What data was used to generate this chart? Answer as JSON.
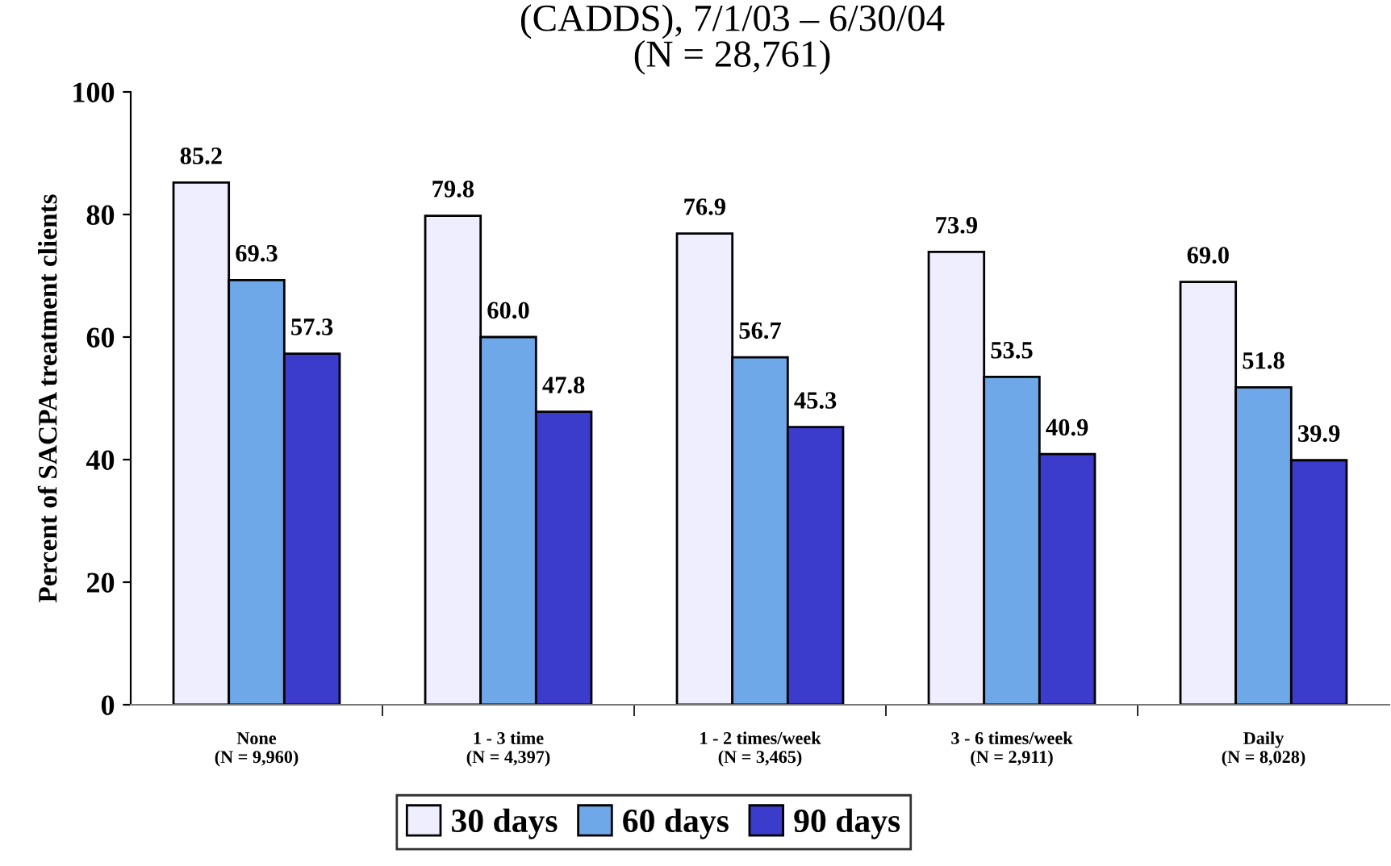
{
  "chart_data": {
    "type": "bar",
    "title": "(CADDS), 7/1/03 – 6/30/04\n(N = 28,761)",
    "ylabel": "Percent of SACPA treatment clients",
    "categories": [
      "None\n(N = 9,960)",
      "1 - 3 time\n(N = 4,397)",
      "1 - 2 times/week\n(N = 3,465)",
      "3 - 6 times/week\n(N = 2,911)",
      "Daily\n(N = 8,028)"
    ],
    "series": [
      {
        "name": "30 days",
        "color": "#eeeeff",
        "values": [
          85.2,
          79.8,
          76.9,
          73.9,
          69.0
        ],
        "value_labels": [
          "85.2",
          "79.8",
          "76.9",
          "73.9",
          "69.0"
        ]
      },
      {
        "name": "60 days",
        "color": "#6fa8e8",
        "values": [
          69.3,
          60.0,
          56.7,
          53.5,
          51.8
        ],
        "value_labels": [
          "69.3",
          "60.0",
          "56.7",
          "53.5",
          "51.8"
        ]
      },
      {
        "name": "90 days",
        "color": "#3b3bcc",
        "values": [
          57.3,
          47.8,
          45.3,
          40.9,
          39.9
        ],
        "value_labels": [
          "57.3",
          "47.8",
          "45.3",
          "40.9",
          "39.9"
        ]
      }
    ],
    "ylim": [
      0,
      100
    ],
    "yticks": [
      0,
      20,
      40,
      60,
      80,
      100
    ],
    "grid": false,
    "legend": "bottom"
  }
}
